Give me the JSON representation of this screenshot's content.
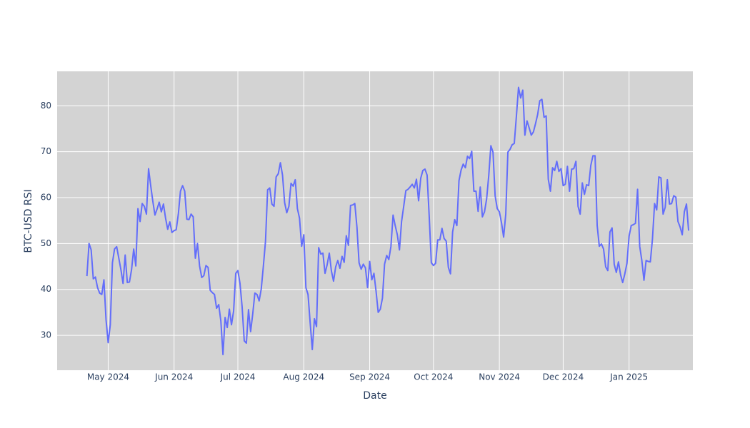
{
  "chart_data": {
    "type": "line",
    "x_label": "Date",
    "y_label": "BTC-USD RSI",
    "color": "#636efa",
    "grid": true,
    "background": "#d3d3d3",
    "xlim": [
      "2024-04-07",
      "2025-01-31"
    ],
    "xticks": [
      {
        "value": "2024-05-01",
        "label": "May 2024"
      },
      {
        "value": "2024-06-01",
        "label": "Jun 2024"
      },
      {
        "value": "2024-07-01",
        "label": "Jul 2024"
      },
      {
        "value": "2024-08-01",
        "label": "Aug 2024"
      },
      {
        "value": "2024-09-01",
        "label": "Sep 2024"
      },
      {
        "value": "2024-10-01",
        "label": "Oct 2024"
      },
      {
        "value": "2024-11-01",
        "label": "Nov 2024"
      },
      {
        "value": "2024-12-01",
        "label": "Dec 2024"
      },
      {
        "value": "2025-01-01",
        "label": "Jan 2025"
      }
    ],
    "ylim": [
      22.4,
      87.5
    ],
    "yticks": [
      30,
      40,
      50,
      60,
      70,
      80
    ],
    "x": [
      "2024-04-21",
      "2024-04-22",
      "2024-04-23",
      "2024-04-24",
      "2024-04-25",
      "2024-04-26",
      "2024-04-27",
      "2024-04-28",
      "2024-04-29",
      "2024-04-30",
      "2024-05-01",
      "2024-05-02",
      "2024-05-03",
      "2024-05-04",
      "2024-05-05",
      "2024-05-06",
      "2024-05-07",
      "2024-05-08",
      "2024-05-09",
      "2024-05-10",
      "2024-05-11",
      "2024-05-12",
      "2024-05-13",
      "2024-05-14",
      "2024-05-15",
      "2024-05-16",
      "2024-05-17",
      "2024-05-18",
      "2024-05-19",
      "2024-05-20",
      "2024-05-21",
      "2024-05-22",
      "2024-05-23",
      "2024-05-24",
      "2024-05-25",
      "2024-05-26",
      "2024-05-27",
      "2024-05-28",
      "2024-05-29",
      "2024-05-30",
      "2024-05-31",
      "2024-06-01",
      "2024-06-02",
      "2024-06-03",
      "2024-06-04",
      "2024-06-05",
      "2024-06-06",
      "2024-06-07",
      "2024-06-08",
      "2024-06-09",
      "2024-06-10",
      "2024-06-11",
      "2024-06-12",
      "2024-06-13",
      "2024-06-14",
      "2024-06-15",
      "2024-06-16",
      "2024-06-17",
      "2024-06-18",
      "2024-06-19",
      "2024-06-20",
      "2024-06-21",
      "2024-06-22",
      "2024-06-23",
      "2024-06-24",
      "2024-06-25",
      "2024-06-26",
      "2024-06-27",
      "2024-06-28",
      "2024-06-29",
      "2024-06-30",
      "2024-07-01",
      "2024-07-02",
      "2024-07-03",
      "2024-07-04",
      "2024-07-05",
      "2024-07-06",
      "2024-07-07",
      "2024-07-08",
      "2024-07-09",
      "2024-07-10",
      "2024-07-11",
      "2024-07-12",
      "2024-07-13",
      "2024-07-14",
      "2024-07-15",
      "2024-07-16",
      "2024-07-17",
      "2024-07-18",
      "2024-07-19",
      "2024-07-20",
      "2024-07-21",
      "2024-07-22",
      "2024-07-23",
      "2024-07-24",
      "2024-07-25",
      "2024-07-26",
      "2024-07-27",
      "2024-07-28",
      "2024-07-29",
      "2024-07-30",
      "2024-07-31",
      "2024-08-01",
      "2024-08-02",
      "2024-08-03",
      "2024-08-04",
      "2024-08-05",
      "2024-08-06",
      "2024-08-07",
      "2024-08-08",
      "2024-08-09",
      "2024-08-10",
      "2024-08-11",
      "2024-08-12",
      "2024-08-13",
      "2024-08-14",
      "2024-08-15",
      "2024-08-16",
      "2024-08-17",
      "2024-08-18",
      "2024-08-19",
      "2024-08-20",
      "2024-08-21",
      "2024-08-22",
      "2024-08-23",
      "2024-08-24",
      "2024-08-25",
      "2024-08-26",
      "2024-08-27",
      "2024-08-28",
      "2024-08-29",
      "2024-08-30",
      "2024-08-31",
      "2024-09-01",
      "2024-09-02",
      "2024-09-03",
      "2024-09-04",
      "2024-09-05",
      "2024-09-06",
      "2024-09-07",
      "2024-09-08",
      "2024-09-09",
      "2024-09-10",
      "2024-09-11",
      "2024-09-12",
      "2024-09-13",
      "2024-09-14",
      "2024-09-15",
      "2024-09-16",
      "2024-09-17",
      "2024-09-18",
      "2024-09-19",
      "2024-09-20",
      "2024-09-21",
      "2024-09-22",
      "2024-09-23",
      "2024-09-24",
      "2024-09-25",
      "2024-09-26",
      "2024-09-27",
      "2024-09-28",
      "2024-09-29",
      "2024-09-30",
      "2024-10-01",
      "2024-10-02",
      "2024-10-03",
      "2024-10-04",
      "2024-10-05",
      "2024-10-06",
      "2024-10-07",
      "2024-10-08",
      "2024-10-09",
      "2024-10-10",
      "2024-10-11",
      "2024-10-12",
      "2024-10-13",
      "2024-10-14",
      "2024-10-15",
      "2024-10-16",
      "2024-10-17",
      "2024-10-18",
      "2024-10-19",
      "2024-10-20",
      "2024-10-21",
      "2024-10-22",
      "2024-10-23",
      "2024-10-24",
      "2024-10-25",
      "2024-10-26",
      "2024-10-27",
      "2024-10-28",
      "2024-10-29",
      "2024-10-30",
      "2024-10-31",
      "2024-11-01",
      "2024-11-02",
      "2024-11-03",
      "2024-11-04",
      "2024-11-05",
      "2024-11-06",
      "2024-11-07",
      "2024-11-08",
      "2024-11-09",
      "2024-11-10",
      "2024-11-11",
      "2024-11-12",
      "2024-11-13",
      "2024-11-14",
      "2024-11-15",
      "2024-11-16",
      "2024-11-17",
      "2024-11-18",
      "2024-11-19",
      "2024-11-20",
      "2024-11-21",
      "2024-11-22",
      "2024-11-23",
      "2024-11-24",
      "2024-11-25",
      "2024-11-26",
      "2024-11-27",
      "2024-11-28",
      "2024-11-29",
      "2024-11-30",
      "2024-12-01",
      "2024-12-02",
      "2024-12-03",
      "2024-12-04",
      "2024-12-05",
      "2024-12-06",
      "2024-12-07",
      "2024-12-08",
      "2024-12-09",
      "2024-12-10",
      "2024-12-11",
      "2024-12-12",
      "2024-12-13",
      "2024-12-14",
      "2024-12-15",
      "2024-12-16",
      "2024-12-17",
      "2024-12-18",
      "2024-12-19",
      "2024-12-20",
      "2024-12-21",
      "2024-12-22",
      "2024-12-23",
      "2024-12-24",
      "2024-12-25",
      "2024-12-26",
      "2024-12-27",
      "2024-12-28",
      "2024-12-29",
      "2024-12-30",
      "2024-12-31",
      "2025-01-01",
      "2025-01-02",
      "2025-01-03",
      "2025-01-04",
      "2025-01-05",
      "2025-01-06",
      "2025-01-07",
      "2025-01-08",
      "2025-01-09",
      "2025-01-10",
      "2025-01-11",
      "2025-01-12",
      "2025-01-13",
      "2025-01-14",
      "2025-01-15",
      "2025-01-16",
      "2025-01-17",
      "2025-01-18",
      "2025-01-19",
      "2025-01-20",
      "2025-01-21",
      "2025-01-22",
      "2025-01-23",
      "2025-01-24",
      "2025-01-25",
      "2025-01-26",
      "2025-01-27",
      "2025-01-28",
      "2025-01-29"
    ],
    "values": [
      42.9,
      50.0,
      48.6,
      42.3,
      42.7,
      40.4,
      39.2,
      38.9,
      42.1,
      33.4,
      28.4,
      32.3,
      45.8,
      48.8,
      49.3,
      46.8,
      44.3,
      41.3,
      47.5,
      41.5,
      41.6,
      44.3,
      48.8,
      45.1,
      57.6,
      54.8,
      58.7,
      58.1,
      56.4,
      66.3,
      62.6,
      59.2,
      56.2,
      57.5,
      59.0,
      56.9,
      58.6,
      55.5,
      53.1,
      54.7,
      52.4,
      52.8,
      53.0,
      56.4,
      61.4,
      62.6,
      61.4,
      55.3,
      55.2,
      56.4,
      55.8,
      46.8,
      50.0,
      45.1,
      42.6,
      43.0,
      45.2,
      44.8,
      39.8,
      39.3,
      38.9,
      35.9,
      36.7,
      33.1,
      25.8,
      33.9,
      31.7,
      35.7,
      32.3,
      35.3,
      43.5,
      44.1,
      41.3,
      36.2,
      28.8,
      28.3,
      35.6,
      30.8,
      34.7,
      39.2,
      38.9,
      37.5,
      40.1,
      45.1,
      50.5,
      61.7,
      62.1,
      58.6,
      58.1,
      64.5,
      65.2,
      67.6,
      64.9,
      58.9,
      56.7,
      58.1,
      63.1,
      62.5,
      63.9,
      57.6,
      55.5,
      49.4,
      51.9,
      40.4,
      38.9,
      32.8,
      26.9,
      33.6,
      31.9,
      49.1,
      47.7,
      47.9,
      43.5,
      45.4,
      47.9,
      44.0,
      41.8,
      44.9,
      46.3,
      44.6,
      47.2,
      45.9,
      51.7,
      49.6,
      58.3,
      58.4,
      58.7,
      53.6,
      45.8,
      44.4,
      45.5,
      44.7,
      40.4,
      46.1,
      42.1,
      43.5,
      39.6,
      35.0,
      35.7,
      38.1,
      45.5,
      47.4,
      46.5,
      49.4,
      56.2,
      53.9,
      51.9,
      48.6,
      54.8,
      58.1,
      61.5,
      61.8,
      62.3,
      62.9,
      62.1,
      64.0,
      59.3,
      64.2,
      65.9,
      66.2,
      64.9,
      55.9,
      45.8,
      45.2,
      45.7,
      50.8,
      50.8,
      53.3,
      51.1,
      50.5,
      44.8,
      43.4,
      52.5,
      55.2,
      53.9,
      63.7,
      66.0,
      67.3,
      66.5,
      69.0,
      68.5,
      70.1,
      61.4,
      61.4,
      57.0,
      62.3,
      55.8,
      56.9,
      59.7,
      64.8,
      71.3,
      69.9,
      60.4,
      57.6,
      56.9,
      54.5,
      51.4,
      56.4,
      69.9,
      70.5,
      71.5,
      71.8,
      77.7,
      84.0,
      81.7,
      83.4,
      73.6,
      76.7,
      75.2,
      73.6,
      74.3,
      76.1,
      78.1,
      81.1,
      81.4,
      77.5,
      77.8,
      64.0,
      61.4,
      66.5,
      65.9,
      67.9,
      65.7,
      66.3,
      62.6,
      62.9,
      66.8,
      61.4,
      66.2,
      66.3,
      67.9,
      58.1,
      56.4,
      63.2,
      60.7,
      62.8,
      62.6,
      67.0,
      69.1,
      69.1,
      53.9,
      49.4,
      49.9,
      48.8,
      44.9,
      44.1,
      52.5,
      53.4,
      45.5,
      43.7,
      46.0,
      43.2,
      41.5,
      43.4,
      45.7,
      51.6,
      53.9,
      54.1,
      54.4,
      61.8,
      49.4,
      46.3,
      42.0,
      46.3,
      46.1,
      46.0,
      51.0,
      58.7,
      57.3,
      64.5,
      64.3,
      56.4,
      57.9,
      63.9,
      58.6,
      58.7,
      60.4,
      60.1,
      54.8,
      53.6,
      51.9,
      56.9,
      58.6,
      52.8
    ]
  }
}
